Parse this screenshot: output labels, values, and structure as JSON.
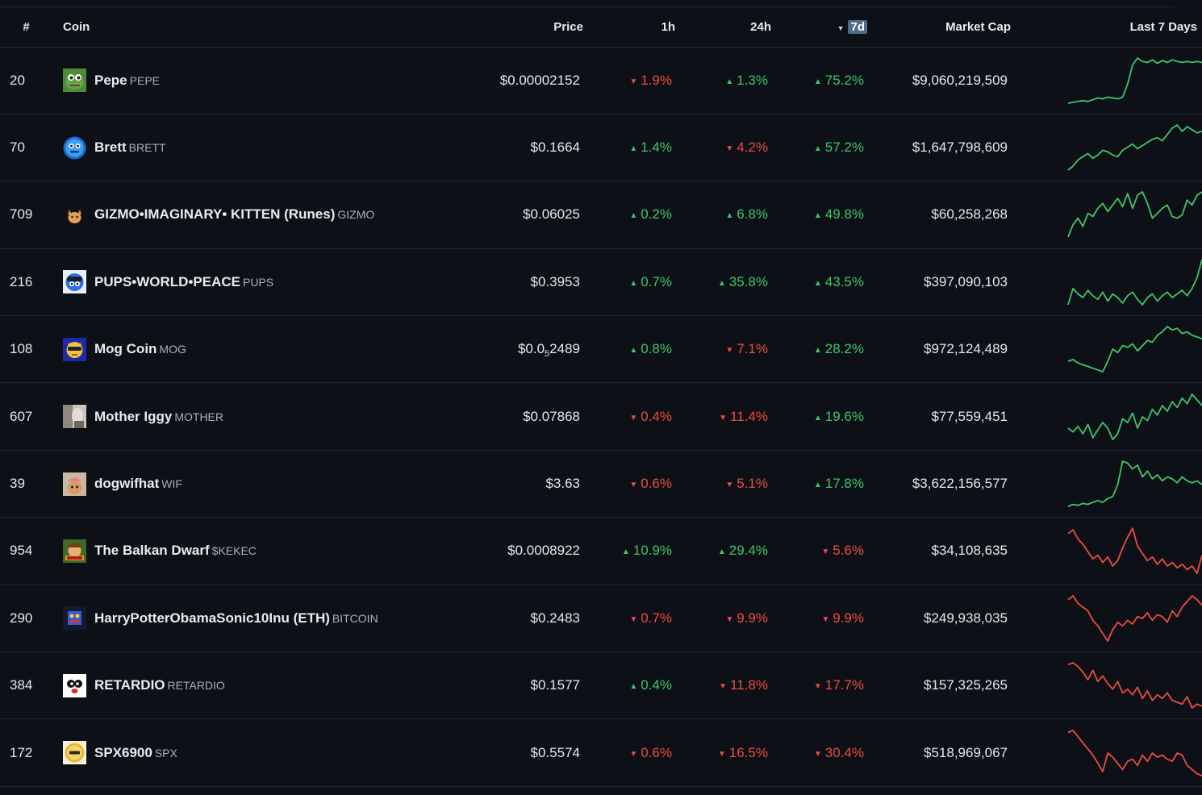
{
  "header": {
    "rank": "#",
    "coin": "Coin",
    "price": "Price",
    "h1": "1h",
    "h24": "24h",
    "d7": "7d",
    "mcap": "Market Cap",
    "spark": "Last 7 Days",
    "sort_indicator": "▼"
  },
  "colors": {
    "up": "#3fc568",
    "down": "#ee4a42",
    "background": "#0d1117",
    "sort_highlight": "#4f6b8a"
  },
  "coins": [
    {
      "rank": "20",
      "name": "Pepe",
      "symbol": "PEPE",
      "icon": "pepe-frog-icon",
      "price": "$0.00002152",
      "h1": "1.9%",
      "h1_dir": "down",
      "h24": "1.3%",
      "h24_dir": "up",
      "d7": "75.2%",
      "d7_dir": "up",
      "mcap": "$9,060,219,509",
      "spark": [
        8,
        9,
        10,
        11,
        10,
        12,
        14,
        13,
        15,
        14,
        13,
        15,
        30,
        52,
        60,
        56,
        55,
        58,
        54,
        57,
        55,
        58,
        56,
        55,
        56,
        55,
        56,
        55
      ]
    },
    {
      "rank": "70",
      "name": "Brett",
      "symbol": "BRETT",
      "icon": "brett-blue-icon",
      "price": "$0.1664",
      "h1": "1.4%",
      "h1_dir": "up",
      "h24": "4.2%",
      "h24_dir": "down",
      "d7": "57.2%",
      "d7_dir": "up",
      "mcap": "$1,647,798,609",
      "spark": [
        5,
        10,
        18,
        22,
        26,
        20,
        24,
        30,
        28,
        24,
        22,
        30,
        34,
        38,
        32,
        36,
        40,
        44,
        46,
        42,
        50,
        58,
        62,
        54,
        60,
        56,
        52,
        54
      ]
    },
    {
      "rank": "709",
      "name": "GIZMO•IMAGINARY• KITTEN (Runes)",
      "symbol": "GIZMO",
      "icon": "gizmo-cat-icon",
      "price": "$0.06025",
      "h1": "0.2%",
      "h1_dir": "up",
      "h24": "6.8%",
      "h24_dir": "up",
      "d7": "49.8%",
      "d7_dir": "up",
      "mcap": "$60,258,268",
      "spark": [
        5,
        20,
        28,
        18,
        34,
        30,
        40,
        46,
        36,
        44,
        52,
        42,
        58,
        40,
        56,
        60,
        46,
        28,
        34,
        40,
        44,
        30,
        28,
        32,
        50,
        44,
        56,
        60
      ]
    },
    {
      "rank": "216",
      "name": "PUPS•WORLD•PEACE",
      "symbol": "PUPS",
      "icon": "pups-dog-icon",
      "price": "$0.3953",
      "h1": "0.7%",
      "h1_dir": "up",
      "h24": "35.8%",
      "h24_dir": "up",
      "d7": "43.5%",
      "d7_dir": "up",
      "mcap": "$397,090,103",
      "spark": [
        10,
        28,
        22,
        18,
        26,
        20,
        16,
        24,
        14,
        22,
        18,
        12,
        20,
        24,
        16,
        10,
        18,
        22,
        14,
        20,
        24,
        18,
        22,
        26,
        20,
        28,
        40,
        60
      ]
    },
    {
      "rank": "108",
      "name": "Mog Coin",
      "symbol": "MOG",
      "icon": "mog-cat-icon",
      "price": "$0.0",
      "price_sub": "5",
      "price_tail": "2489",
      "h1": "0.8%",
      "h1_dir": "up",
      "h24": "7.1%",
      "h24_dir": "down",
      "d7": "28.2%",
      "d7_dir": "up",
      "mcap": "$972,124,489",
      "spark": [
        18,
        20,
        16,
        14,
        12,
        10,
        8,
        6,
        18,
        32,
        28,
        36,
        34,
        38,
        30,
        36,
        42,
        40,
        48,
        52,
        58,
        54,
        56,
        50,
        52,
        48,
        46,
        44
      ]
    },
    {
      "rank": "607",
      "name": "Mother Iggy",
      "symbol": "MOTHER",
      "icon": "mother-photo-icon",
      "price": "$0.07868",
      "h1": "0.4%",
      "h1_dir": "down",
      "h24": "11.4%",
      "h24_dir": "down",
      "d7": "19.6%",
      "d7_dir": "up",
      "mcap": "$77,559,451",
      "spark": [
        20,
        16,
        22,
        14,
        24,
        10,
        18,
        26,
        20,
        8,
        14,
        30,
        26,
        36,
        20,
        32,
        28,
        40,
        34,
        44,
        38,
        48,
        42,
        52,
        46,
        56,
        50,
        44
      ]
    },
    {
      "rank": "39",
      "name": "dogwifhat",
      "symbol": "WIF",
      "icon": "wif-dog-icon",
      "price": "$3.63",
      "h1": "0.6%",
      "h1_dir": "down",
      "h24": "5.1%",
      "h24_dir": "down",
      "d7": "17.8%",
      "d7_dir": "up",
      "mcap": "$3,622,156,577",
      "spark": [
        10,
        12,
        11,
        13,
        12,
        14,
        16,
        14,
        18,
        20,
        32,
        56,
        54,
        48,
        52,
        40,
        46,
        38,
        42,
        36,
        40,
        38,
        34,
        40,
        36,
        34,
        36,
        32
      ]
    },
    {
      "rank": "954",
      "name": "The Balkan Dwarf",
      "symbol": "$KEKEC",
      "icon": "kekec-dwarf-icon",
      "price": "$0.0008922",
      "h1": "10.9%",
      "h1_dir": "up",
      "h24": "29.4%",
      "h24_dir": "up",
      "d7": "5.6%",
      "d7_dir": "down",
      "mcap": "$34,108,635",
      "spark": [
        50,
        54,
        44,
        38,
        30,
        22,
        26,
        18,
        24,
        14,
        20,
        34,
        46,
        56,
        36,
        28,
        20,
        24,
        16,
        22,
        14,
        18,
        12,
        16,
        10,
        14,
        6,
        26
      ]
    },
    {
      "rank": "290",
      "name": "HarryPotterObamaSonic10Inu (ETH)",
      "symbol": "BITCOIN",
      "icon": "hpos-mascot-icon",
      "price": "$0.2483",
      "h1": "0.7%",
      "h1_dir": "down",
      "h24": "9.9%",
      "h24_dir": "down",
      "d7": "9.9%",
      "d7_dir": "down",
      "mcap": "$249,938,035",
      "spark": [
        52,
        56,
        48,
        44,
        40,
        30,
        24,
        16,
        8,
        20,
        28,
        24,
        30,
        26,
        34,
        32,
        38,
        30,
        36,
        34,
        28,
        40,
        34,
        44,
        50,
        56,
        52,
        46
      ]
    },
    {
      "rank": "384",
      "name": "RETARDIO",
      "symbol": "RETARDIO",
      "icon": "retardio-face-icon",
      "price": "$0.1577",
      "h1": "0.4%",
      "h1_dir": "up",
      "h24": "11.8%",
      "h24_dir": "down",
      "d7": "17.7%",
      "d7_dir": "down",
      "mcap": "$157,325,265",
      "spark": [
        56,
        58,
        54,
        48,
        40,
        50,
        38,
        44,
        36,
        30,
        38,
        26,
        30,
        24,
        32,
        20,
        28,
        18,
        24,
        20,
        26,
        18,
        16,
        14,
        22,
        10,
        14,
        12
      ]
    },
    {
      "rank": "172",
      "name": "SPX6900",
      "symbol": "SPX",
      "icon": "spx-coin-icon",
      "price": "$0.5574",
      "h1": "0.6%",
      "h1_dir": "down",
      "h24": "16.5%",
      "h24_dir": "down",
      "d7": "30.4%",
      "d7_dir": "down",
      "mcap": "$518,969,067",
      "spark": [
        50,
        52,
        46,
        40,
        34,
        28,
        20,
        12,
        30,
        26,
        20,
        14,
        22,
        24,
        18,
        28,
        22,
        30,
        26,
        28,
        24,
        22,
        30,
        28,
        18,
        14,
        10,
        8
      ]
    }
  ]
}
